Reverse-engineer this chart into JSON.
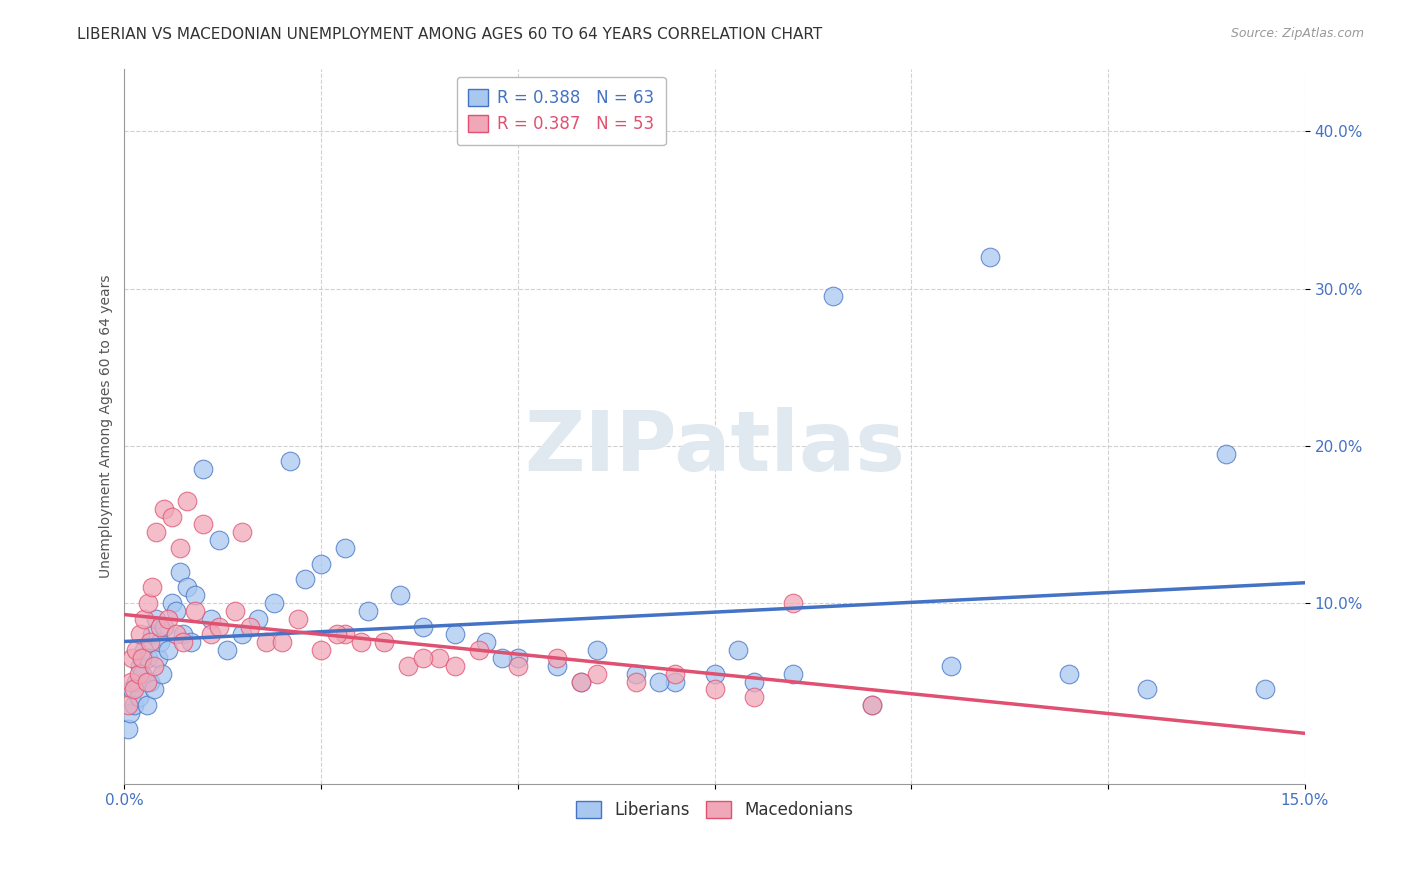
{
  "title": "LIBERIAN VS MACEDONIAN UNEMPLOYMENT AMONG AGES 60 TO 64 YEARS CORRELATION CHART",
  "source": "Source: ZipAtlas.com",
  "ylabel_label": "Unemployment Among Ages 60 to 64 years",
  "xlim": [
    0.0,
    15.0
  ],
  "ylim": [
    -1.5,
    44.0
  ],
  "liberian_color": "#a8c8f0",
  "macedonian_color": "#f0a8b8",
  "liberian_line_color": "#4472c4",
  "macedonian_line_color": "#e05070",
  "background_color": "#ffffff",
  "grid_color": "#cccccc",
  "title_fontsize": 11,
  "axis_label_fontsize": 10,
  "tick_fontsize": 11,
  "lib_R": 0.388,
  "lib_N": 63,
  "mac_R": 0.387,
  "mac_N": 53,
  "liberian_x": [
    0.05,
    0.07,
    0.1,
    0.12,
    0.15,
    0.18,
    0.2,
    0.22,
    0.25,
    0.28,
    0.3,
    0.32,
    0.35,
    0.38,
    0.4,
    0.42,
    0.45,
    0.48,
    0.5,
    0.55,
    0.6,
    0.65,
    0.7,
    0.75,
    0.8,
    0.85,
    0.9,
    1.0,
    1.1,
    1.2,
    1.3,
    1.5,
    1.7,
    1.9,
    2.1,
    2.3,
    2.5,
    2.8,
    3.1,
    3.5,
    3.8,
    4.2,
    4.6,
    5.0,
    5.5,
    6.0,
    6.5,
    7.0,
    7.5,
    8.0,
    8.5,
    9.5,
    10.5,
    11.0,
    12.0,
    13.0,
    14.0,
    4.8,
    5.8,
    6.8,
    7.8,
    9.0,
    14.5
  ],
  "liberian_y": [
    2.0,
    3.0,
    4.5,
    3.5,
    5.0,
    4.0,
    6.0,
    5.5,
    7.0,
    3.5,
    6.5,
    5.0,
    8.0,
    4.5,
    9.0,
    6.5,
    7.5,
    5.5,
    8.5,
    7.0,
    10.0,
    9.5,
    12.0,
    8.0,
    11.0,
    7.5,
    10.5,
    18.5,
    9.0,
    14.0,
    7.0,
    8.0,
    9.0,
    10.0,
    19.0,
    11.5,
    12.5,
    13.5,
    9.5,
    10.5,
    8.5,
    8.0,
    7.5,
    6.5,
    6.0,
    7.0,
    5.5,
    5.0,
    5.5,
    5.0,
    5.5,
    3.5,
    6.0,
    32.0,
    5.5,
    4.5,
    19.5,
    6.5,
    5.0,
    5.0,
    7.0,
    29.5,
    4.5
  ],
  "macedonian_x": [
    0.05,
    0.08,
    0.1,
    0.12,
    0.15,
    0.18,
    0.2,
    0.22,
    0.25,
    0.28,
    0.3,
    0.32,
    0.35,
    0.38,
    0.4,
    0.45,
    0.5,
    0.55,
    0.6,
    0.65,
    0.7,
    0.75,
    0.8,
    0.9,
    1.0,
    1.1,
    1.2,
    1.4,
    1.6,
    1.8,
    2.0,
    2.2,
    2.5,
    2.8,
    3.0,
    3.3,
    3.6,
    4.0,
    4.5,
    5.0,
    5.5,
    6.0,
    6.5,
    7.0,
    7.5,
    8.0,
    8.5,
    4.2,
    5.8,
    9.5,
    1.5,
    2.7,
    3.8
  ],
  "macedonian_y": [
    3.5,
    5.0,
    6.5,
    4.5,
    7.0,
    5.5,
    8.0,
    6.5,
    9.0,
    5.0,
    10.0,
    7.5,
    11.0,
    6.0,
    14.5,
    8.5,
    16.0,
    9.0,
    15.5,
    8.0,
    13.5,
    7.5,
    16.5,
    9.5,
    15.0,
    8.0,
    8.5,
    9.5,
    8.5,
    7.5,
    7.5,
    9.0,
    7.0,
    8.0,
    7.5,
    7.5,
    6.0,
    6.5,
    7.0,
    6.0,
    6.5,
    5.5,
    5.0,
    5.5,
    4.5,
    4.0,
    10.0,
    6.0,
    5.0,
    3.5,
    14.5,
    8.0,
    6.5
  ]
}
